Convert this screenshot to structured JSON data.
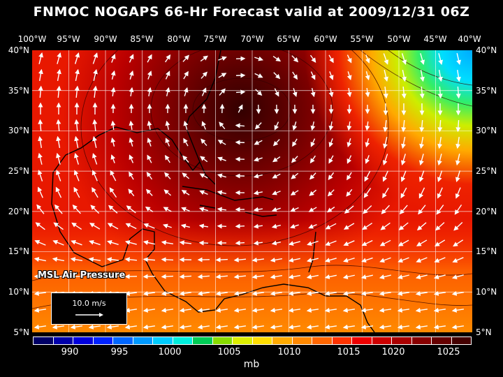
{
  "title": "FNMOC NOGAPS 66-Hr Forecast valid at 2009/12/31 06Z",
  "longitudes": [
    "100°W",
    "95°W",
    "90°W",
    "85°W",
    "80°W",
    "75°W",
    "70°W",
    "65°W",
    "60°W",
    "55°W",
    "50°W",
    "45°W",
    "40°W"
  ],
  "latitudes": [
    "40°N",
    "35°N",
    "30°N",
    "25°N",
    "20°N",
    "15°N",
    "10°N",
    "5°N"
  ],
  "overlay_label": "MSL Air Pressure",
  "reference_vector": {
    "label": "10.0 m/s"
  },
  "colorbar": {
    "units": "mb",
    "tick_labels": [
      "990",
      "995",
      "1000",
      "1005",
      "1010",
      "1015",
      "1020",
      "1025"
    ],
    "colors": [
      "#000066",
      "#0000aa",
      "#0000dd",
      "#0022ff",
      "#0066ff",
      "#0099ff",
      "#00ccff",
      "#00eedd",
      "#00cc55",
      "#88dd00",
      "#ddee00",
      "#ffdd00",
      "#ffaa00",
      "#ff8800",
      "#ff6600",
      "#ff3300",
      "#ee0000",
      "#cc0000",
      "#aa0000",
      "#880000",
      "#660000",
      "#440000"
    ]
  },
  "colors": {
    "background": "#000000",
    "pressure_low": "#00ccff",
    "pressure_high": "#3a0000",
    "wind_vectors": "#ffffff",
    "coastline": "#000000",
    "grid": "#ffffff"
  }
}
